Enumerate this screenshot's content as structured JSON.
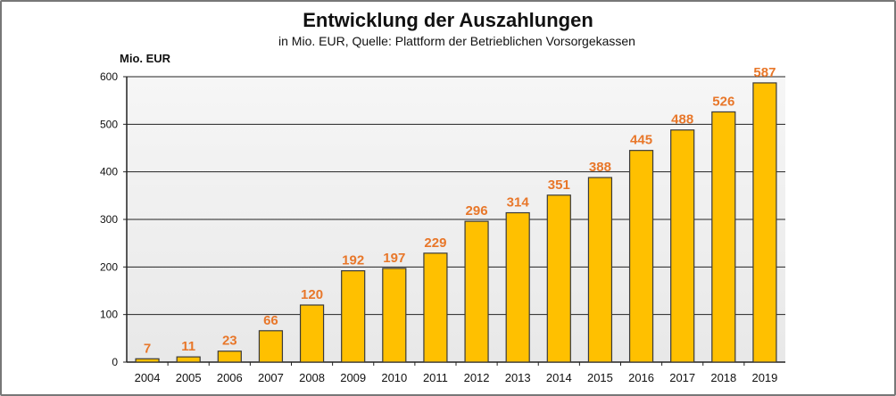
{
  "chart_data": {
    "type": "bar",
    "title": "Entwicklung der Auszahlungen",
    "subtitle": "in Mio. EUR, Quelle: Plattform der Betrieblichen Vorsorgekassen",
    "ylabel": "Mio. EUR",
    "xlabel": "",
    "categories": [
      "2004",
      "2005",
      "2006",
      "2007",
      "2008",
      "2009",
      "2010",
      "2011",
      "2012",
      "2013",
      "2014",
      "2015",
      "2016",
      "2017",
      "2018",
      "2019"
    ],
    "values": [
      7,
      11,
      23,
      66,
      120,
      192,
      197,
      229,
      296,
      314,
      351,
      388,
      445,
      488,
      526,
      587
    ],
    "ylim": [
      0,
      600
    ],
    "yticks": [
      0,
      100,
      200,
      300,
      400,
      500,
      600
    ],
    "grid": true,
    "legend": "none",
    "colors": {
      "bar": "#FFC000",
      "bar_border": "#3a3a3a",
      "data_label": "#E8772A",
      "plot_bg": "#EFEFEF"
    }
  }
}
